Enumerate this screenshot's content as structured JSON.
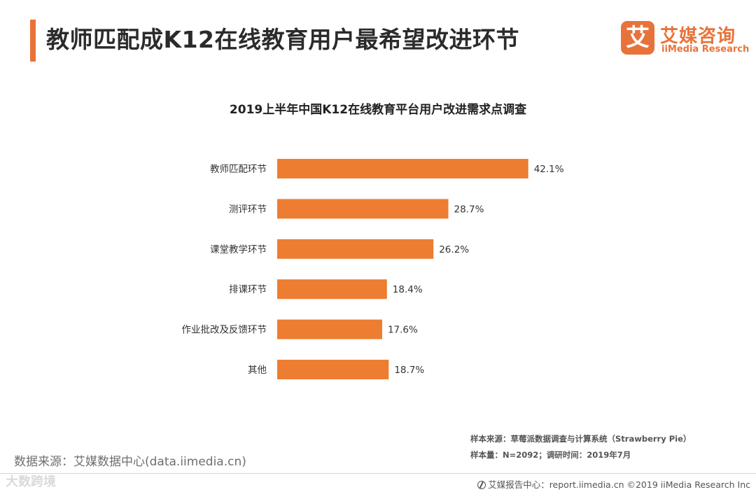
{
  "header": {
    "title": "教师匹配成K12在线教育用户最希望改进环节",
    "logo_mark": "艾",
    "logo_cn": "艾媒咨询",
    "logo_en": "iiMedia Research"
  },
  "colors": {
    "accent": "#e8733a",
    "bar": "#ed7d31"
  },
  "chart_data": {
    "type": "bar",
    "orientation": "horizontal",
    "title": "2019上半年中国K12在线教育平台用户改进需求点调查",
    "categories": [
      "教师匹配环节",
      "测评环节",
      "课堂教学环节",
      "排课环节",
      "作业批改及反馈环节",
      "其他"
    ],
    "values": [
      42.1,
      28.7,
      26.2,
      18.4,
      17.6,
      18.7
    ],
    "value_labels": [
      "42.1%",
      "28.7%",
      "26.2%",
      "18.4%",
      "17.6%",
      "18.7%"
    ],
    "unit": "%",
    "xlim": [
      0,
      45
    ],
    "xlabel": "",
    "ylabel": "",
    "grid": false,
    "legend": "none"
  },
  "notes": {
    "sample_source": "样本来源：草莓派数据调查与计算系统（Strawberry  Pie）",
    "sample_size": "样本量：N=2092；调研时间：2019年7月"
  },
  "footer": {
    "data_source": "数据来源：艾媒数据中心(data.iimedia.cn)",
    "watermark": "大数跨境",
    "report_center": "艾媒报告中心：report.iimedia.cn  ©2019  iiMedia Research  Inc"
  }
}
